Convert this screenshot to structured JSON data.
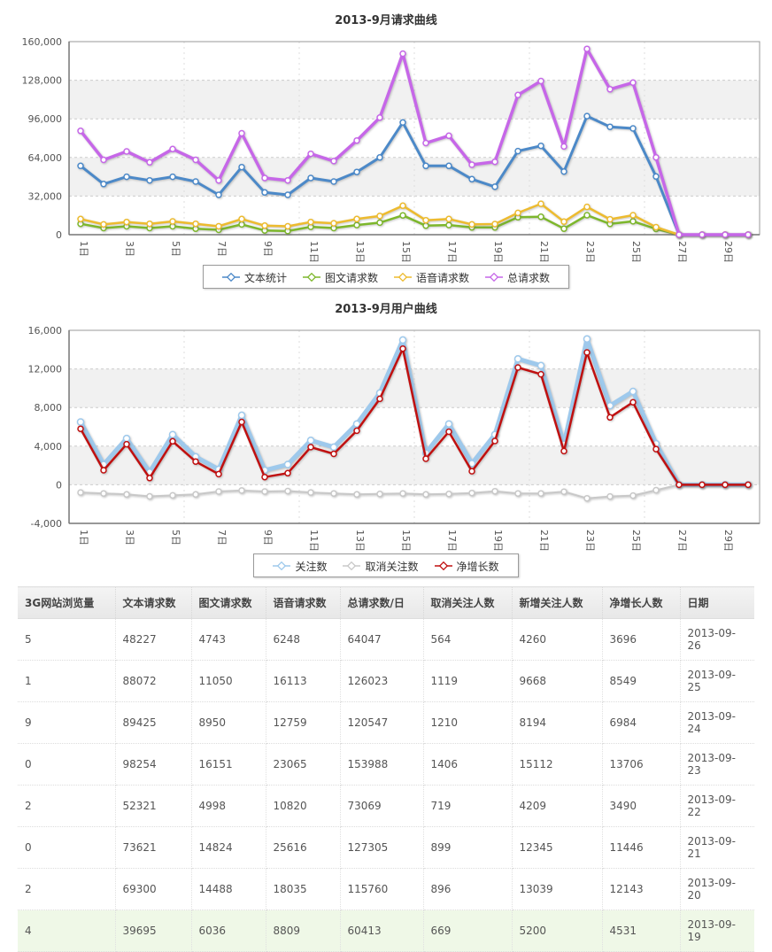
{
  "charts": [
    {
      "title": "2013-9月请求曲线",
      "type": "line",
      "n_points": 30,
      "x_tick_labels": [
        "1日",
        "3日",
        "5日",
        "7日",
        "9日",
        "11日",
        "13日",
        "15日",
        "17日",
        "19日",
        "21日",
        "23日",
        "25日",
        "27日",
        "29日"
      ],
      "ylim": [
        0,
        160000
      ],
      "yticks": [
        0,
        32000,
        64000,
        96000,
        128000,
        160000
      ],
      "ytick_labels": [
        "0",
        "32,000",
        "64,000",
        "96,000",
        "128,000",
        "160,000"
      ],
      "grid": true,
      "legend_position": "bottom",
      "series": [
        {
          "name": "文本统计",
          "color": "#4c89c8",
          "width": 3,
          "values": [
            57000,
            42000,
            48000,
            45000,
            48000,
            44000,
            33000,
            56000,
            35000,
            33000,
            47000,
            44000,
            52000,
            64000,
            93000,
            57000,
            57000,
            46000,
            39695,
            69300,
            73621,
            52321,
            98254,
            89425,
            88072,
            48227,
            0,
            0,
            0,
            0
          ]
        },
        {
          "name": "图文请求数",
          "color": "#7db72c",
          "width": 2.5,
          "values": [
            9000,
            5500,
            7000,
            5500,
            7000,
            5000,
            4000,
            8500,
            3500,
            3000,
            6500,
            5500,
            8000,
            10000,
            16000,
            7500,
            8000,
            6000,
            6036,
            14488,
            14824,
            4998,
            16151,
            8950,
            11050,
            4743,
            0,
            0,
            0,
            0
          ]
        },
        {
          "name": "语音请求数",
          "color": "#edbb2f",
          "width": 2.5,
          "values": [
            13000,
            8500,
            10500,
            9000,
            11000,
            9000,
            7000,
            13000,
            7500,
            7000,
            10500,
            9500,
            13000,
            15500,
            24000,
            12000,
            13000,
            8500,
            8809,
            18035,
            25616,
            10820,
            23065,
            12759,
            16113,
            6248,
            0,
            0,
            0,
            0
          ]
        },
        {
          "name": "总请求数",
          "color": "#c667e8",
          "width": 3.5,
          "values": [
            86000,
            62000,
            69000,
            60000,
            71000,
            62000,
            45000,
            84000,
            47000,
            45000,
            67000,
            61000,
            78000,
            97000,
            150000,
            76000,
            82000,
            58000,
            60413,
            115760,
            127305,
            73069,
            153988,
            120547,
            126023,
            64047,
            0,
            0,
            0,
            0
          ]
        }
      ]
    },
    {
      "title": "2013-9月用户曲线",
      "type": "line",
      "n_points": 30,
      "x_tick_labels": [
        "1日",
        "3日",
        "5日",
        "7日",
        "9日",
        "11日",
        "13日",
        "15日",
        "17日",
        "19日",
        "21日",
        "23日",
        "25日",
        "27日",
        "29日"
      ],
      "ylim": [
        -4000,
        16000
      ],
      "yticks": [
        -4000,
        0,
        4000,
        8000,
        12000,
        16000
      ],
      "ytick_labels": [
        "-4,000",
        "0",
        "4,000",
        "8,000",
        "12,000",
        "16,000"
      ],
      "grid": true,
      "legend_position": "bottom",
      "series": [
        {
          "name": "关注数",
          "color": "#9ec9ec",
          "width": 5,
          "values": [
            6500,
            2100,
            4800,
            1300,
            5200,
            2900,
            1600,
            7200,
            1500,
            2100,
            4600,
            3900,
            6300,
            9500,
            15000,
            3300,
            6300,
            2200,
            5200,
            13039,
            12345,
            4209,
            15112,
            8194,
            9668,
            4260,
            0,
            0,
            0,
            0
          ]
        },
        {
          "name": "取消关注数",
          "color": "#c8c8c8",
          "width": 2,
          "values": [
            -800,
            -900,
            -1000,
            -1200,
            -1100,
            -1000,
            -700,
            -600,
            -700,
            -650,
            -800,
            -900,
            -1000,
            -950,
            -900,
            -1000,
            -950,
            -850,
            -669,
            -896,
            -899,
            -719,
            -1406,
            -1210,
            -1119,
            -564,
            0,
            0,
            0,
            0
          ]
        },
        {
          "name": "净增长数",
          "color": "#c01010",
          "width": 2.5,
          "values": [
            5800,
            1500,
            4200,
            700,
            4500,
            2400,
            1100,
            6500,
            800,
            1200,
            3900,
            3200,
            5600,
            8900,
            14100,
            2700,
            5500,
            1400,
            4531,
            12143,
            11446,
            3490,
            13706,
            6984,
            8549,
            3696,
            0,
            0,
            0,
            0
          ]
        }
      ]
    }
  ],
  "table": {
    "columns": [
      "3G网站浏览量",
      "文本请求数",
      "图文请求数",
      "语音请求数",
      "总请求数/日",
      "取消关注人数",
      "新增关注人数",
      "净增长人数",
      "日期"
    ],
    "rows": [
      [
        "5",
        "48227",
        "4743",
        "6248",
        "64047",
        "564",
        "4260",
        "3696",
        "2013-09-26"
      ],
      [
        "1",
        "88072",
        "11050",
        "16113",
        "126023",
        "1119",
        "9668",
        "8549",
        "2013-09-25"
      ],
      [
        "9",
        "89425",
        "8950",
        "12759",
        "120547",
        "1210",
        "8194",
        "6984",
        "2013-09-24"
      ],
      [
        "0",
        "98254",
        "16151",
        "23065",
        "153988",
        "1406",
        "15112",
        "13706",
        "2013-09-23"
      ],
      [
        "2",
        "52321",
        "4998",
        "10820",
        "73069",
        "719",
        "4209",
        "3490",
        "2013-09-22"
      ],
      [
        "0",
        "73621",
        "14824",
        "25616",
        "127305",
        "899",
        "12345",
        "11446",
        "2013-09-21"
      ],
      [
        "2",
        "69300",
        "14488",
        "18035",
        "115760",
        "896",
        "13039",
        "12143",
        "2013-09-20"
      ],
      [
        "4",
        "39695",
        "6036",
        "8809",
        "60413",
        "669",
        "5200",
        "4531",
        "2013-09-19"
      ]
    ],
    "highlight_row_index": 7,
    "highlight_color": "#eff8e7"
  },
  "colors": {
    "band_gray": "#f1f1f1",
    "grid_line": "#cccccc",
    "plot_border": "#999999",
    "tick_text": "#555555"
  }
}
